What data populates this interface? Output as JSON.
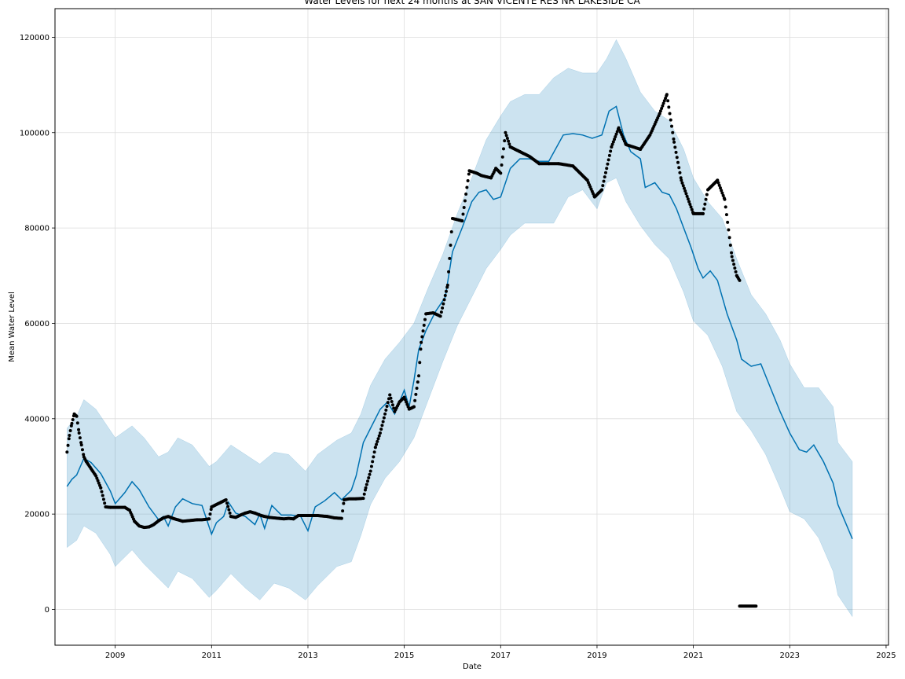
{
  "chart_data": {
    "type": "line",
    "title": "Water Levels for next 24 months at SAN VICENTE RES NR LAKESIDE CA",
    "xlabel": "Date",
    "ylabel": "Mean Water Level",
    "xlim": [
      2007.75,
      2025.05
    ],
    "ylim": [
      -7500,
      126000
    ],
    "x_ticks": [
      2009,
      2011,
      2013,
      2015,
      2017,
      2019,
      2021,
      2023,
      2025
    ],
    "x_tick_labels": [
      "2009",
      "2011",
      "2013",
      "2015",
      "2017",
      "2019",
      "2021",
      "2023",
      "2025"
    ],
    "y_ticks": [
      0,
      20000,
      40000,
      60000,
      80000,
      100000,
      120000
    ],
    "y_tick_labels": [
      "0",
      "20000",
      "40000",
      "60000",
      "80000",
      "100000",
      "120000"
    ],
    "grid": true,
    "colors": {
      "observed": "#000000",
      "forecast": "#0072B2",
      "uncertainty": "#0072B2"
    },
    "series": [
      {
        "kind": "observed",
        "x": [
          2008.0,
          2008.05,
          2008.1,
          2008.15,
          2008.2,
          2008.25,
          2008.3,
          2008.35,
          2008.4,
          2008.5,
          2008.6,
          2008.7,
          2008.8,
          2008.9,
          2009.0,
          2009.1,
          2009.2,
          2009.3,
          2009.4,
          2009.5,
          2009.6,
          2009.7,
          2009.8,
          2009.9,
          2010.0,
          2010.1,
          2010.2,
          2010.3,
          2010.4,
          2010.5,
          2010.6,
          2010.7,
          2010.8,
          2010.95,
          2011.0,
          2011.1,
          2011.2,
          2011.3,
          2011.4,
          2011.5,
          2011.6,
          2011.7,
          2011.8,
          2011.9,
          2012.0,
          2012.1,
          2012.2,
          2012.3,
          2012.4,
          2012.5,
          2012.6,
          2012.7,
          2012.8,
          2012.9,
          2013.0,
          2013.2,
          2013.4,
          2013.55,
          2013.7,
          2013.75,
          2013.85,
          2014.0,
          2014.15,
          2014.2,
          2014.3,
          2014.4,
          2014.5,
          2014.6,
          2014.7,
          2014.8,
          2014.9,
          2015.0,
          2015.1,
          2015.2,
          2015.3,
          2015.35,
          2015.45,
          2015.6,
          2015.75,
          2015.9,
          2016.0,
          2016.2,
          2016.35,
          2016.5,
          2016.6,
          2016.8,
          2016.9,
          2017.0,
          2017.1,
          2017.2,
          2017.3,
          2017.4,
          2017.6,
          2017.8,
          2018.0,
          2018.2,
          2018.5,
          2018.8,
          2018.95,
          2019.1,
          2019.3,
          2019.45,
          2019.6,
          2019.9,
          2020.1,
          2020.3,
          2020.45,
          2020.6,
          2020.75,
          2021.0,
          2021.2,
          2021.3,
          2021.5,
          2021.65,
          2021.8,
          2021.9,
          2021.96,
          2022.3
        ],
        "y": [
          33000,
          36500,
          39000,
          41000,
          40500,
          37000,
          34500,
          32000,
          31000,
          29500,
          28000,
          25500,
          21500,
          21400,
          21400,
          21400,
          21400,
          20800,
          18500,
          17500,
          17200,
          17300,
          17800,
          18600,
          19200,
          19500,
          19100,
          18800,
          18500,
          18600,
          18700,
          18800,
          18800,
          19000,
          21500,
          22000,
          22500,
          23000,
          19500,
          19300,
          19800,
          20200,
          20500,
          20200,
          19800,
          19500,
          19300,
          19200,
          19100,
          19000,
          19100,
          19000,
          19700,
          19700,
          19700,
          19700,
          19500,
          19200,
          19100,
          23000,
          23200,
          23200,
          23300,
          25500,
          29000,
          34000,
          37000,
          41000,
          45000,
          41500,
          43500,
          44500,
          42000,
          42500,
          49000,
          56000,
          62000,
          62200,
          61500,
          68000,
          82000,
          81500,
          92000,
          91500,
          91000,
          90500,
          92500,
          91500,
          100000,
          97000,
          96500,
          96000,
          95000,
          93500,
          93500,
          93500,
          93000,
          90000,
          86500,
          88000,
          97000,
          101000,
          97500,
          96500,
          99500,
          104000,
          108000,
          98000,
          90000,
          83000,
          83000,
          88000,
          90000,
          86000,
          74000,
          70000,
          69000,
          700
        ],
        "name": ""
      },
      {
        "kind": "forecast",
        "x": [
          2008.0,
          2008.1,
          2008.2,
          2008.35,
          2008.5,
          2008.7,
          2008.9,
          2009.0,
          2009.2,
          2009.35,
          2009.5,
          2009.7,
          2009.9,
          2010.0,
          2010.1,
          2010.25,
          2010.4,
          2010.6,
          2010.8,
          2011.0,
          2011.1,
          2011.25,
          2011.35,
          2011.5,
          2011.7,
          2011.9,
          2012.0,
          2012.1,
          2012.25,
          2012.45,
          2012.65,
          2012.85,
          2013.0,
          2013.15,
          2013.35,
          2013.55,
          2013.7,
          2013.9,
          2014.0,
          2014.15,
          2014.3,
          2014.5,
          2014.65,
          2014.8,
          2015.0,
          2015.1,
          2015.2,
          2015.3,
          2015.45,
          2015.65,
          2015.85,
          2016.0,
          2016.2,
          2016.4,
          2016.55,
          2016.7,
          2016.85,
          2017.0,
          2017.2,
          2017.4,
          2017.6,
          2017.8,
          2018.0,
          2018.3,
          2018.5,
          2018.7,
          2018.9,
          2019.1,
          2019.25,
          2019.4,
          2019.55,
          2019.7,
          2019.9,
          2020.0,
          2020.2,
          2020.35,
          2020.5,
          2020.65,
          2020.8,
          2020.95,
          2021.1,
          2021.2,
          2021.35,
          2021.5,
          2021.7,
          2021.9,
          2022.0,
          2022.2,
          2022.4,
          2022.6,
          2022.8,
          2023.0,
          2023.2,
          2023.35,
          2023.5,
          2023.7,
          2023.9,
          2024.0,
          2024.3
        ],
        "y": [
          25800,
          27300,
          28200,
          31700,
          30800,
          28500,
          24800,
          22200,
          24500,
          26800,
          25100,
          21500,
          18800,
          19500,
          17500,
          21500,
          23200,
          22200,
          21800,
          15800,
          18200,
          19500,
          22500,
          20200,
          19500,
          17800,
          20000,
          17000,
          21800,
          19800,
          19800,
          19500,
          16500,
          21500,
          22800,
          24500,
          23000,
          25000,
          28000,
          35000,
          38000,
          42000,
          43500,
          41000,
          46000,
          42500,
          48000,
          54500,
          58500,
          62500,
          65500,
          75000,
          80000,
          85500,
          87500,
          88000,
          86000,
          86500,
          92500,
          94500,
          94500,
          94000,
          94000,
          99500,
          99800,
          99500,
          98800,
          99500,
          104500,
          105500,
          99500,
          96000,
          94500,
          88500,
          89500,
          87500,
          87000,
          84000,
          80000,
          76000,
          71500,
          69500,
          71000,
          69000,
          62000,
          56500,
          52500,
          51000,
          51500,
          46500,
          41500,
          37000,
          33500,
          33000,
          34500,
          31000,
          26500,
          22000,
          14800
        ],
        "name": ""
      },
      {
        "kind": "uncertainty-upper",
        "x": [
          2008.0,
          2008.2,
          2008.35,
          2008.6,
          2008.9,
          2009.0,
          2009.35,
          2009.6,
          2009.9,
          2010.1,
          2010.3,
          2010.6,
          2010.95,
          2011.1,
          2011.4,
          2011.7,
          2012.0,
          2012.3,
          2012.6,
          2012.95,
          2013.2,
          2013.6,
          2013.9,
          2014.1,
          2014.3,
          2014.6,
          2014.9,
          2015.2,
          2015.5,
          2015.8,
          2016.1,
          2016.4,
          2016.7,
          2017.0,
          2017.2,
          2017.5,
          2017.8,
          2018.1,
          2018.4,
          2018.7,
          2019.0,
          2019.2,
          2019.4,
          2019.6,
          2019.9,
          2020.2,
          2020.5,
          2020.8,
          2021.0,
          2021.3,
          2021.6,
          2021.9,
          2022.2,
          2022.5,
          2022.8,
          2023.0,
          2023.3,
          2023.6,
          2023.9,
          2024.0,
          2024.3
        ],
        "y": [
          38000,
          40500,
          44000,
          42000,
          37500,
          36000,
          38500,
          36000,
          32000,
          33000,
          36000,
          34500,
          30000,
          31000,
          34500,
          32500,
          30500,
          33000,
          32500,
          29000,
          32500,
          35500,
          37000,
          41000,
          47000,
          52500,
          56000,
          60000,
          67500,
          74500,
          83000,
          90500,
          98500,
          103500,
          106500,
          108000,
          108000,
          111500,
          113500,
          112500,
          112500,
          115500,
          119500,
          115500,
          108500,
          104500,
          102500,
          96500,
          90500,
          85500,
          82000,
          73500,
          66000,
          62000,
          56500,
          51500,
          46500,
          46500,
          42500,
          35000,
          31000
        ]
      },
      {
        "kind": "uncertainty-lower",
        "x": [
          2008.0,
          2008.2,
          2008.35,
          2008.6,
          2008.9,
          2009.0,
          2009.35,
          2009.6,
          2009.9,
          2010.1,
          2010.3,
          2010.6,
          2010.95,
          2011.1,
          2011.4,
          2011.7,
          2012.0,
          2012.3,
          2012.6,
          2012.95,
          2013.2,
          2013.6,
          2013.9,
          2014.1,
          2014.3,
          2014.6,
          2014.9,
          2015.2,
          2015.5,
          2015.8,
          2016.1,
          2016.4,
          2016.7,
          2017.0,
          2017.2,
          2017.5,
          2017.8,
          2018.1,
          2018.4,
          2018.7,
          2019.0,
          2019.2,
          2019.4,
          2019.6,
          2019.9,
          2020.2,
          2020.5,
          2020.8,
          2021.0,
          2021.3,
          2021.6,
          2021.9,
          2022.2,
          2022.5,
          2022.8,
          2023.0,
          2023.3,
          2023.6,
          2023.9,
          2024.0,
          2024.3
        ],
        "y": [
          13000,
          14500,
          17500,
          16000,
          11500,
          9000,
          12500,
          9500,
          6500,
          4500,
          8000,
          6500,
          2500,
          4000,
          7500,
          4500,
          2000,
          5500,
          4500,
          2000,
          5000,
          9000,
          10000,
          15500,
          22000,
          27500,
          31000,
          36000,
          44000,
          52000,
          59500,
          65500,
          71500,
          75500,
          78500,
          81000,
          81000,
          81000,
          86500,
          88000,
          84000,
          89500,
          90500,
          85500,
          80500,
          76500,
          73500,
          66500,
          60500,
          57500,
          51000,
          41500,
          37500,
          32500,
          25500,
          20500,
          19000,
          15000,
          8000,
          3000,
          -1500
        ]
      }
    ]
  }
}
